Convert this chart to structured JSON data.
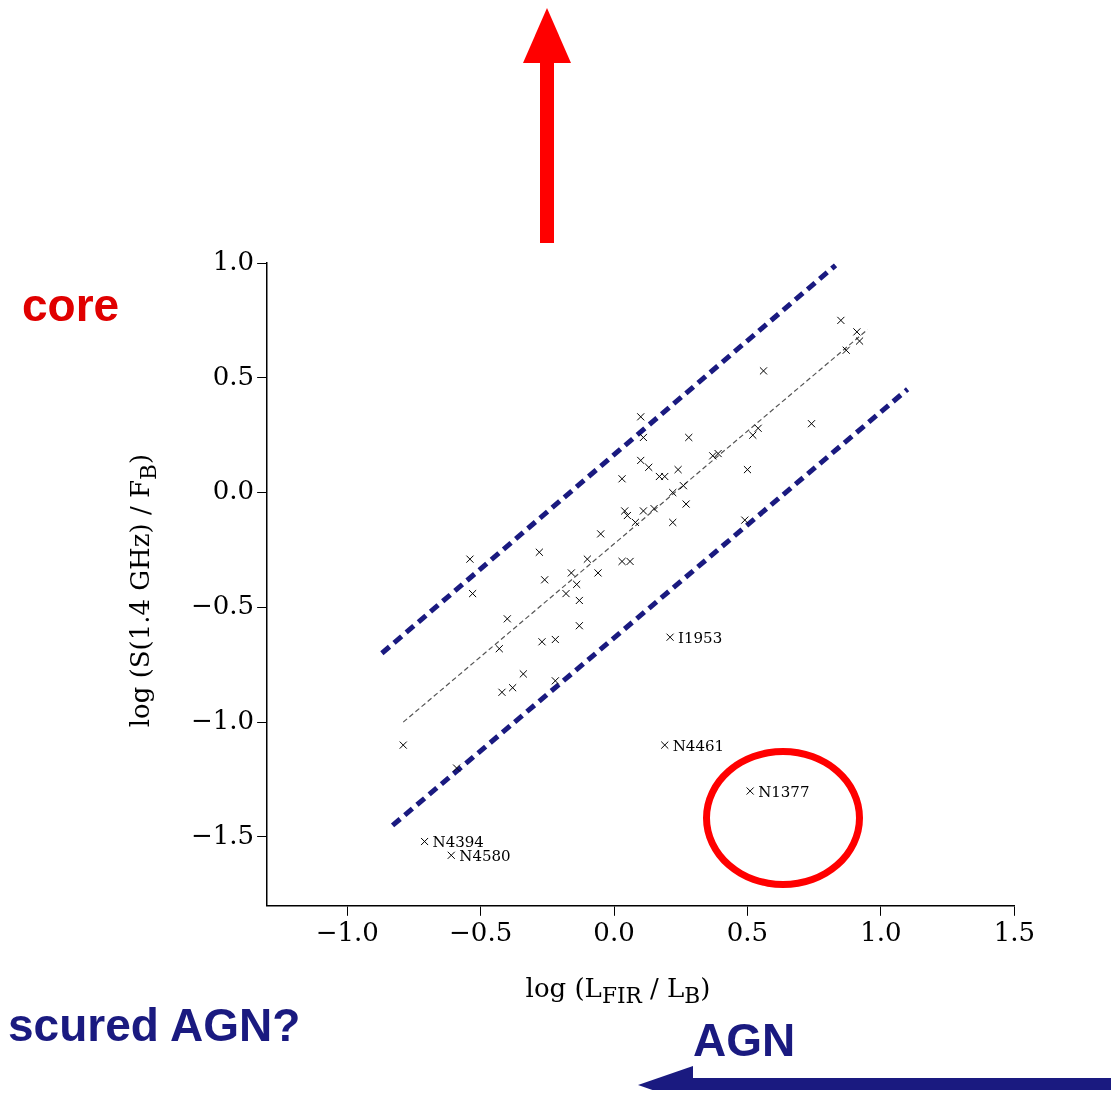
{
  "chart_data": {
    "type": "scatter",
    "xlabel": "log (L$_{FIR}$ / L$_{B}$)",
    "ylabel": "log (S(1.4 GHz) / F$_{B}$)",
    "xlim": [
      -1.3,
      1.5
    ],
    "ylim": [
      -1.8,
      1.0
    ],
    "xticks": [
      {
        "value": -1,
        "label": "−1.0"
      },
      {
        "value": -0.5,
        "label": "−0.5"
      },
      {
        "value": 0,
        "label": "0.0"
      },
      {
        "value": 0.5,
        "label": "0.5"
      },
      {
        "value": 1,
        "label": "1.0"
      },
      {
        "value": 1.5,
        "label": "1.5"
      }
    ],
    "yticks": [
      {
        "value": -1.5,
        "label": "−1.5"
      },
      {
        "value": -1,
        "label": "−1.0"
      },
      {
        "value": -0.5,
        "label": "−0.5"
      },
      {
        "value": 0,
        "label": "0.0"
      },
      {
        "value": 0.5,
        "label": "0.5"
      },
      {
        "value": 1,
        "label": "1.0"
      }
    ],
    "grid": false,
    "legend": false,
    "marker": "cross",
    "series": [
      {
        "color": "#000000",
        "x": [
          -0.79,
          -0.54,
          -0.53,
          -0.4,
          -0.43,
          -0.34,
          -0.42,
          -0.38,
          -0.28,
          -0.26,
          -0.27,
          -0.22,
          -0.22,
          -0.16,
          -0.18,
          -0.14,
          -0.13,
          -0.13,
          -0.1,
          -0.05,
          -0.06,
          0.03,
          0.04,
          0.03,
          0.06,
          0.05,
          0.08,
          0.11,
          0.1,
          0.11,
          0.1,
          0.13,
          0.15,
          0.17,
          0.19,
          0.22,
          0.22,
          0.26,
          0.24,
          0.27,
          0.28,
          0.37,
          0.39,
          0.5,
          0.52,
          0.54,
          0.56,
          0.49,
          0.74,
          0.85,
          0.87,
          0.91,
          0.92,
          0.21,
          0.19,
          0.51,
          -0.59,
          -0.71,
          -0.61
        ],
        "values": [
          -1.1,
          -0.29,
          -0.44,
          -0.55,
          -0.68,
          -0.79,
          -0.87,
          -0.85,
          -0.26,
          -0.38,
          -0.65,
          -0.64,
          -0.82,
          -0.35,
          -0.44,
          -0.4,
          -0.47,
          -0.58,
          -0.29,
          -0.18,
          -0.35,
          0.06,
          -0.08,
          -0.3,
          -0.3,
          -0.1,
          -0.13,
          -0.08,
          0.33,
          0.24,
          0.14,
          0.11,
          -0.07,
          0.07,
          0.07,
          0.0,
          -0.13,
          0.03,
          0.1,
          -0.05,
          0.24,
          0.16,
          0.17,
          0.1,
          0.25,
          0.28,
          0.53,
          -0.12,
          0.3,
          0.75,
          0.62,
          0.7,
          0.66,
          -0.63,
          -1.1,
          -1.3,
          -1.2,
          -1.52,
          -1.58
        ]
      },
      {
        "type": "line",
        "color": "#555555",
        "line_style": "dashed",
        "marker": "none",
        "x": [
          -0.79,
          0.95
        ],
        "values": [
          -1.0,
          0.71
        ]
      },
      {
        "type": "line",
        "color": "#1a1a80",
        "line_style": "dashed",
        "marker": "none",
        "x": [
          -0.87,
          0.83
        ],
        "values": [
          -0.7,
          0.99
        ]
      },
      {
        "type": "line",
        "color": "#1a1a80",
        "line_style": "dashed",
        "marker": "none",
        "x": [
          -0.83,
          1.1
        ],
        "values": [
          -1.45,
          0.45
        ]
      }
    ],
    "annotations": [
      {
        "text": "I1953",
        "x": 0.21,
        "y": -0.63
      },
      {
        "text": "N4461",
        "x": 0.19,
        "y": -1.1
      },
      {
        "text": "N1377",
        "x": 0.51,
        "y": -1.3
      },
      {
        "text": "N4394",
        "x": -0.71,
        "y": -1.52
      },
      {
        "text": "N4580",
        "x": -0.61,
        "y": -1.58
      },
      "core",
      "scured AGN?",
      "AGN"
    ]
  }
}
